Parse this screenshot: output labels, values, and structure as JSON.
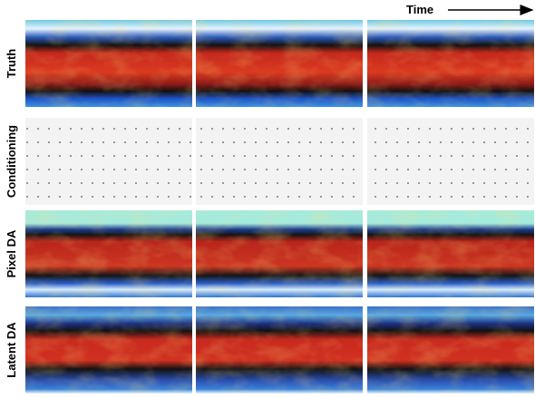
{
  "time_label": "Time",
  "rows": [
    {
      "label": "Truth"
    },
    {
      "label": "Conditioning"
    },
    {
      "label": "Pixel DA"
    },
    {
      "label": "Latent DA"
    }
  ]
}
